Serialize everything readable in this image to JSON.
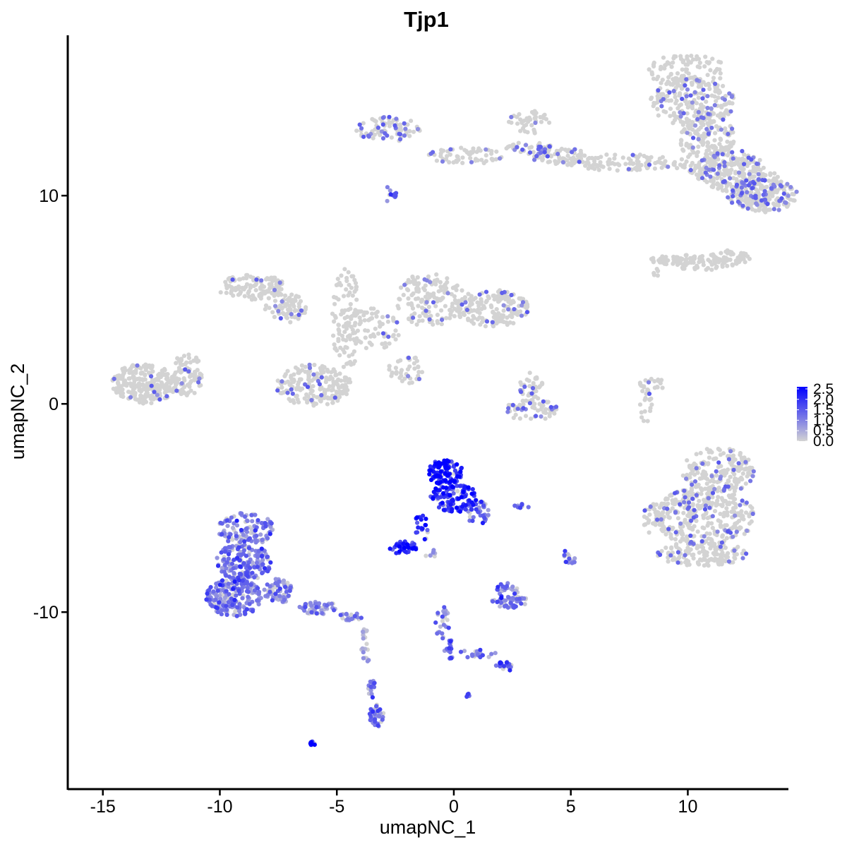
{
  "chart_data": {
    "type": "scatter",
    "title": "Tjp1",
    "xlabel": "umapNC_1",
    "ylabel": "umapNC_2",
    "xlim": [
      -16.5,
      14.3
    ],
    "ylim": [
      -18.5,
      17.7
    ],
    "x_ticks": [
      -15,
      -10,
      -5,
      0,
      5,
      10
    ],
    "x_tick_labels": [
      "-15",
      "-10",
      "-5",
      "0",
      "5",
      "10"
    ],
    "y_ticks": [
      -10,
      0,
      10
    ],
    "y_tick_labels": [
      "-10",
      "0",
      "10"
    ],
    "grid": false,
    "legend": {
      "placement": "right",
      "type": "colorbar",
      "min": 0,
      "max": 2.6,
      "ticks": [
        0,
        0.5,
        1,
        1.5,
        2,
        2.5
      ],
      "tick_labels": [
        "0.0",
        "0.5",
        "1.0",
        "1.5",
        "2.0",
        "2.5"
      ]
    },
    "colors": {
      "low": "#d3d3d3",
      "high": "#0000ff",
      "axis": "#000000"
    },
    "clusters": [
      {
        "x": 10,
        "y": 16,
        "rx": 1.7,
        "ry": 0.8,
        "n": 100,
        "expr": 0
      },
      {
        "x": 10.2,
        "y": 14.5,
        "rx": 1.8,
        "ry": 1.2,
        "n": 200,
        "expr": 0.04
      },
      {
        "x": 10.8,
        "y": 12.8,
        "rx": 1.2,
        "ry": 1.2,
        "n": 150,
        "expr": 0.03
      },
      {
        "x": 11.8,
        "y": 11.2,
        "rx": 1.5,
        "ry": 1.0,
        "n": 170,
        "expr": 0.05
      },
      {
        "x": 13.2,
        "y": 10.0,
        "rx": 1.5,
        "ry": 0.8,
        "n": 170,
        "expr": 0.06
      },
      {
        "x": 7.0,
        "y": 11.6,
        "rx": 2.6,
        "ry": 0.4,
        "n": 110,
        "expr": 0.01
      },
      {
        "x": 4.5,
        "y": 11.9,
        "rx": 1.2,
        "ry": 0.4,
        "n": 60,
        "expr": 0.05
      },
      {
        "x": 3.2,
        "y": 12.3,
        "rx": 1.0,
        "ry": 0.3,
        "n": 40,
        "expr": 0.08
      },
      {
        "x": 12.8,
        "y": 9.8,
        "rx": 0.6,
        "ry": 0.3,
        "n": 20,
        "expr": 0.05
      },
      {
        "x": 13.0,
        "y": 10.6,
        "rx": 1.0,
        "ry": 0.7,
        "n": 60,
        "expr": 0.03
      },
      {
        "x": -2.8,
        "y": 13.2,
        "rx": 1.4,
        "ry": 0.6,
        "n": 80,
        "expr": 0.08
      },
      {
        "x": 0.5,
        "y": 11.9,
        "rx": 1.6,
        "ry": 0.4,
        "n": 60,
        "expr": 0.02
      },
      {
        "x": 3.2,
        "y": 13.5,
        "rx": 0.9,
        "ry": 0.6,
        "n": 40,
        "expr": 0.03
      },
      {
        "x": -2.75,
        "y": 10.1,
        "rx": 0.3,
        "ry": 0.4,
        "n": 10,
        "expr": 0.5
      },
      {
        "x": 11.0,
        "y": 11.5,
        "rx": 1.6,
        "ry": 0.5,
        "n": 70,
        "expr": 0.02
      },
      {
        "x": 9.1,
        "y": 6.9,
        "rx": 0.7,
        "ry": 0.2,
        "n": 40,
        "expr": 0
      },
      {
        "x": 10.5,
        "y": 6.8,
        "rx": 1.2,
        "ry": 0.4,
        "n": 60,
        "expr": 0
      },
      {
        "x": 11.8,
        "y": 7.0,
        "rx": 0.9,
        "ry": 0.4,
        "n": 50,
        "expr": 0
      },
      {
        "x": 8.6,
        "y": 6.3,
        "rx": 0.2,
        "ry": 0.2,
        "n": 6,
        "expr": 0
      },
      {
        "x": -13.2,
        "y": 1.0,
        "rx": 1.4,
        "ry": 1.0,
        "n": 250,
        "expr": 0.01
      },
      {
        "x": -11.4,
        "y": 1.4,
        "rx": 0.7,
        "ry": 1.0,
        "n": 80,
        "expr": 0.02
      },
      {
        "x": -8.6,
        "y": 5.6,
        "rx": 1.5,
        "ry": 0.6,
        "n": 120,
        "expr": 0.01
      },
      {
        "x": -7.2,
        "y": 4.6,
        "rx": 0.9,
        "ry": 0.7,
        "n": 70,
        "expr": 0.01
      },
      {
        "x": -4.6,
        "y": 4.0,
        "rx": 0.6,
        "ry": 2.5,
        "n": 90,
        "expr": 0
      },
      {
        "x": -3.5,
        "y": 3.6,
        "rx": 1.2,
        "ry": 1.0,
        "n": 80,
        "expr": 0.01
      },
      {
        "x": -1.0,
        "y": 5.0,
        "rx": 1.5,
        "ry": 1.3,
        "n": 150,
        "expr": 0.02
      },
      {
        "x": 1.6,
        "y": 4.6,
        "rx": 1.6,
        "ry": 0.9,
        "n": 170,
        "expr": 0.03
      },
      {
        "x": -6.0,
        "y": 0.9,
        "rx": 1.6,
        "ry": 1.0,
        "n": 200,
        "expr": 0.02
      },
      {
        "x": -2.0,
        "y": 1.6,
        "rx": 0.8,
        "ry": 0.7,
        "n": 40,
        "expr": 0.02
      },
      {
        "x": 3.3,
        "y": 0.8,
        "rx": 0.5,
        "ry": 0.7,
        "n": 40,
        "expr": 0.02
      },
      {
        "x": 3.3,
        "y": -0.3,
        "rx": 1.2,
        "ry": 0.5,
        "n": 60,
        "expr": 0.05
      },
      {
        "x": 8.2,
        "y": 0.3,
        "rx": 0.3,
        "ry": 1.2,
        "n": 30,
        "expr": 0.02
      },
      {
        "x": 8.7,
        "y": 1.0,
        "rx": 0.3,
        "ry": 0.4,
        "n": 10,
        "expr": 0.02
      },
      {
        "x": 11.3,
        "y": -3.2,
        "rx": 1.6,
        "ry": 1.1,
        "n": 180,
        "expr": 0.03
      },
      {
        "x": 10.7,
        "y": -5.4,
        "rx": 2.2,
        "ry": 1.4,
        "n": 350,
        "expr": 0.03
      },
      {
        "x": 10.6,
        "y": -7.2,
        "rx": 1.9,
        "ry": 0.6,
        "n": 150,
        "expr": 0.02
      },
      {
        "x": 8.5,
        "y": -5.5,
        "rx": 0.4,
        "ry": 0.8,
        "n": 30,
        "expr": 0.02
      },
      {
        "x": -0.4,
        "y": -3.3,
        "rx": 0.8,
        "ry": 0.6,
        "n": 100,
        "expr": 0.88
      },
      {
        "x": 0.0,
        "y": -4.5,
        "rx": 1.0,
        "ry": 0.7,
        "n": 120,
        "expr": 0.75
      },
      {
        "x": 1.0,
        "y": -5.2,
        "rx": 0.5,
        "ry": 0.6,
        "n": 40,
        "expr": 0.55
      },
      {
        "x": -1.4,
        "y": -6.0,
        "rx": 0.3,
        "ry": 0.7,
        "n": 20,
        "expr": 0.75
      },
      {
        "x": -2.2,
        "y": -6.9,
        "rx": 0.7,
        "ry": 0.3,
        "n": 40,
        "expr": 0.82
      },
      {
        "x": -8.9,
        "y": -6.0,
        "rx": 1.2,
        "ry": 0.8,
        "n": 120,
        "expr": 0.35
      },
      {
        "x": -9.0,
        "y": -7.6,
        "rx": 1.2,
        "ry": 0.9,
        "n": 170,
        "expr": 0.42
      },
      {
        "x": -9.4,
        "y": -9.3,
        "rx": 1.2,
        "ry": 0.9,
        "n": 200,
        "expr": 0.4
      },
      {
        "x": -7.5,
        "y": -9.0,
        "rx": 0.6,
        "ry": 0.6,
        "n": 60,
        "expr": 0.35
      },
      {
        "x": -5.8,
        "y": -9.8,
        "rx": 0.9,
        "ry": 0.3,
        "n": 50,
        "expr": 0.3
      },
      {
        "x": -4.4,
        "y": -10.2,
        "rx": 0.5,
        "ry": 0.2,
        "n": 20,
        "expr": 0.4
      },
      {
        "x": -3.8,
        "y": -11.8,
        "rx": 0.2,
        "ry": 1.0,
        "n": 20,
        "expr": 0.15
      },
      {
        "x": -3.3,
        "y": -15.0,
        "rx": 0.3,
        "ry": 0.6,
        "n": 40,
        "expr": 0.45
      },
      {
        "x": -3.5,
        "y": -13.7,
        "rx": 0.15,
        "ry": 0.5,
        "n": 15,
        "expr": 0.4
      },
      {
        "x": -6.0,
        "y": -16.3,
        "rx": 0.15,
        "ry": 0.1,
        "n": 10,
        "expr": 0.95
      },
      {
        "x": 2.4,
        "y": -9.5,
        "rx": 0.8,
        "ry": 0.3,
        "n": 50,
        "expr": 0.35
      },
      {
        "x": 2.3,
        "y": -8.9,
        "rx": 0.5,
        "ry": 0.3,
        "n": 20,
        "expr": 0.35
      },
      {
        "x": -0.5,
        "y": -10.5,
        "rx": 0.3,
        "ry": 0.8,
        "n": 25,
        "expr": 0.35
      },
      {
        "x": -0.2,
        "y": -11.8,
        "rx": 0.2,
        "ry": 0.5,
        "n": 20,
        "expr": 0.45
      },
      {
        "x": 1.0,
        "y": -12.0,
        "rx": 0.8,
        "ry": 0.2,
        "n": 20,
        "expr": 0.35
      },
      {
        "x": 2.2,
        "y": -12.6,
        "rx": 0.4,
        "ry": 0.25,
        "n": 20,
        "expr": 0.55
      },
      {
        "x": 0.6,
        "y": -14.0,
        "rx": 0.1,
        "ry": 0.1,
        "n": 5,
        "expr": 0.85
      },
      {
        "x": 4.9,
        "y": -7.4,
        "rx": 0.3,
        "ry": 0.4,
        "n": 15,
        "expr": 0.45
      },
      {
        "x": 2.9,
        "y": -4.9,
        "rx": 0.4,
        "ry": 0.1,
        "n": 8,
        "expr": 0.55
      },
      {
        "x": -1.0,
        "y": -7.2,
        "rx": 0.3,
        "ry": 0.2,
        "n": 6,
        "expr": 0.2
      }
    ]
  }
}
